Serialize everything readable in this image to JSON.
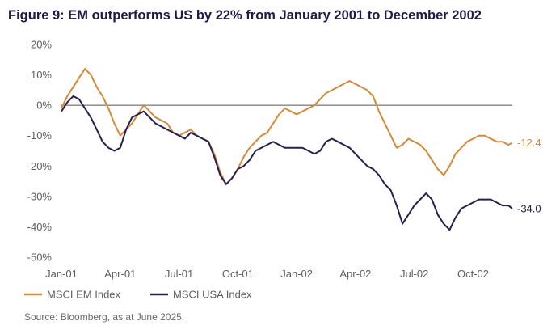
{
  "title": "Figure 9: EM outperforms US by 22% from January 2001 to December 2002",
  "source": "Source: Bloomberg, as at June 2025.",
  "colors": {
    "em": "#d58a34",
    "usa": "#25204f",
    "zero_line": "#555555",
    "text": "#5f5f5f"
  },
  "chart_data": {
    "type": "line",
    "title": "Figure 9: EM outperforms US by 22% from January 2001 to December 2002",
    "xlabel": "",
    "ylabel": "",
    "x_unit": "months since Jan-01",
    "xlim": [
      0,
      23
    ],
    "ylim": [
      -50,
      20
    ],
    "y_ticks": [
      20,
      10,
      0,
      -10,
      -20,
      -30,
      -40,
      -50
    ],
    "y_tick_labels": [
      "20%",
      "10%",
      "0%",
      "-10%",
      "-20%",
      "-30%",
      "-40%",
      "-50%"
    ],
    "x_ticks": [
      0,
      3,
      6,
      9,
      12,
      15,
      18,
      21
    ],
    "x_tick_labels": [
      "Jan-01",
      "Apr-01",
      "Jul-01",
      "Oct-01",
      "Jan-02",
      "Apr-02",
      "Jul-02",
      "Oct-02"
    ],
    "zero_line": true,
    "series": [
      {
        "name": "MSCI EM Index",
        "color": "#d58a34",
        "end_label": "-12.4",
        "x": [
          0,
          0.3,
          0.6,
          0.9,
          1.2,
          1.5,
          1.8,
          2.1,
          2.4,
          2.7,
          3.0,
          3.3,
          3.6,
          3.9,
          4.2,
          4.5,
          4.8,
          5.1,
          5.4,
          5.7,
          6.0,
          6.3,
          6.6,
          6.9,
          7.2,
          7.5,
          7.8,
          8.1,
          8.4,
          8.7,
          9.0,
          9.3,
          9.6,
          9.9,
          10.2,
          10.5,
          10.8,
          11.1,
          11.4,
          11.7,
          12.0,
          12.3,
          12.6,
          12.9,
          13.2,
          13.5,
          13.8,
          14.1,
          14.4,
          14.7,
          15.0,
          15.3,
          15.6,
          15.9,
          16.2,
          16.5,
          16.8,
          17.1,
          17.4,
          17.7,
          18.0,
          18.3,
          18.6,
          18.9,
          19.2,
          19.5,
          19.8,
          20.1,
          20.4,
          20.7,
          21.0,
          21.3,
          21.6,
          21.9,
          22.2,
          22.5,
          22.8,
          23.0
        ],
        "y": [
          -1,
          3,
          6,
          9,
          12,
          10,
          6,
          3,
          -1,
          -6,
          -10,
          -8,
          -6,
          -3,
          0,
          -2,
          -4,
          -5,
          -6,
          -9,
          -10,
          -9,
          -8,
          -10,
          -11,
          -12,
          -16,
          -22,
          -26,
          -24,
          -21,
          -17,
          -14,
          -12,
          -10,
          -9,
          -6,
          -3,
          -1,
          -2,
          -3,
          -2,
          -1,
          0,
          2,
          4,
          5,
          6,
          7,
          8,
          7,
          6,
          5,
          3,
          -2,
          -6,
          -10,
          -14,
          -13,
          -11,
          -12,
          -13,
          -15,
          -18,
          -21,
          -23,
          -20,
          -16,
          -14,
          -12,
          -11,
          -10,
          -10,
          -11,
          -12,
          -12,
          -13,
          -12.4
        ]
      },
      {
        "name": "MSCI USA Index",
        "color": "#25204f",
        "end_label": "-34.0",
        "x": [
          0,
          0.3,
          0.6,
          0.9,
          1.2,
          1.5,
          1.8,
          2.1,
          2.4,
          2.7,
          3.0,
          3.3,
          3.6,
          3.9,
          4.2,
          4.5,
          4.8,
          5.1,
          5.4,
          5.7,
          6.0,
          6.3,
          6.6,
          6.9,
          7.2,
          7.5,
          7.8,
          8.1,
          8.4,
          8.7,
          9.0,
          9.3,
          9.6,
          9.9,
          10.2,
          10.5,
          10.8,
          11.1,
          11.4,
          11.7,
          12.0,
          12.3,
          12.6,
          12.9,
          13.2,
          13.5,
          13.8,
          14.1,
          14.4,
          14.7,
          15.0,
          15.3,
          15.6,
          15.9,
          16.2,
          16.5,
          16.8,
          17.1,
          17.4,
          17.7,
          18.0,
          18.3,
          18.6,
          18.9,
          19.2,
          19.5,
          19.8,
          20.1,
          20.4,
          20.7,
          21.0,
          21.3,
          21.6,
          21.9,
          22.2,
          22.5,
          22.8,
          23.0
        ],
        "y": [
          -2,
          1,
          3,
          2,
          -1,
          -4,
          -8,
          -12,
          -14,
          -15,
          -14,
          -8,
          -4,
          -3,
          -2,
          -4,
          -6,
          -7,
          -8,
          -9,
          -10,
          -11,
          -9,
          -10,
          -11,
          -12,
          -17,
          -23,
          -26,
          -24,
          -21,
          -20,
          -18,
          -15,
          -14,
          -13,
          -12,
          -13,
          -14,
          -14,
          -14,
          -14,
          -15,
          -16,
          -15,
          -12,
          -11,
          -12,
          -13,
          -14,
          -16,
          -18,
          -20,
          -21,
          -23,
          -26,
          -28,
          -33,
          -39,
          -36,
          -33,
          -31,
          -29,
          -31,
          -36,
          -39,
          -41,
          -37,
          -34,
          -33,
          -32,
          -31,
          -31,
          -31,
          -32,
          -33,
          -33,
          -34
        ]
      }
    ],
    "legend": [
      "MSCI EM Index",
      "MSCI USA Index"
    ],
    "legend_position": "bottom-left"
  }
}
